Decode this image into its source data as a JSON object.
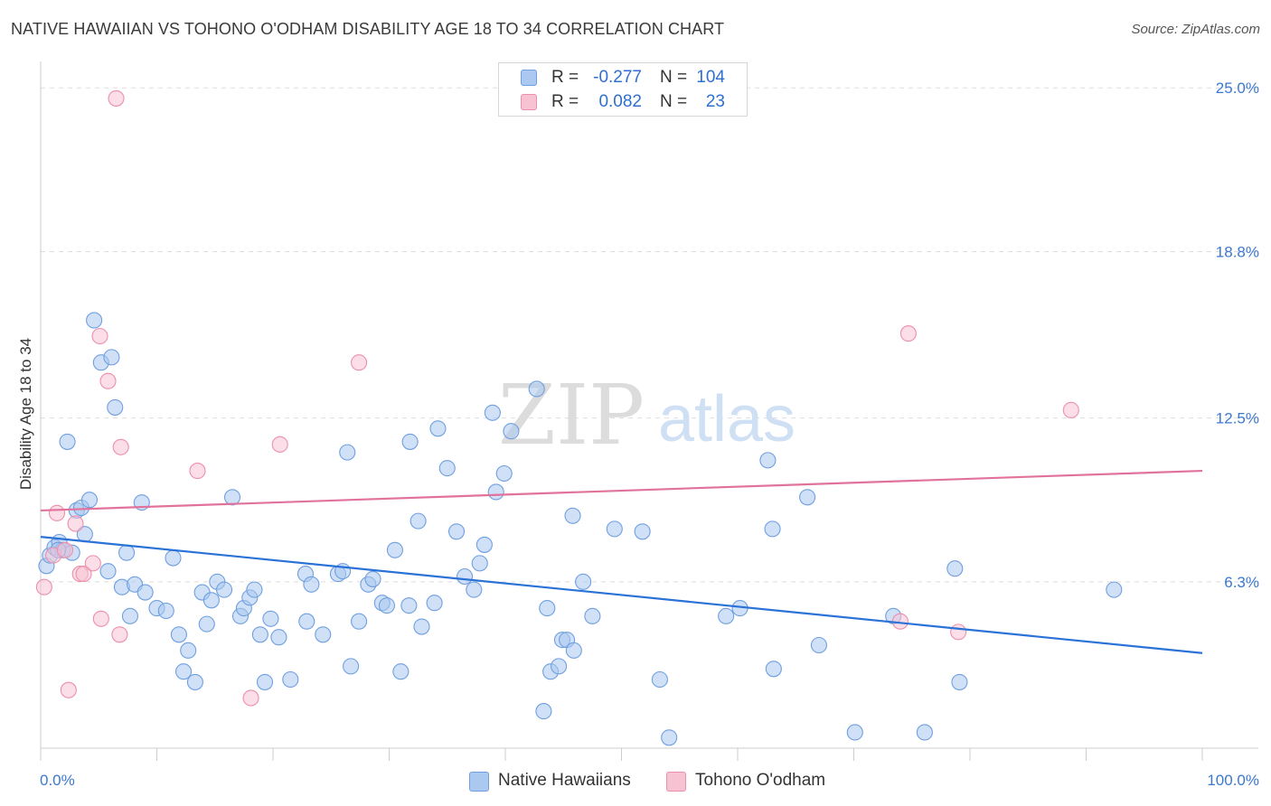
{
  "title": "NATIVE HAWAIIAN VS TOHONO O'ODHAM DISABILITY AGE 18 TO 34 CORRELATION CHART",
  "source": "Source: ZipAtlas.com",
  "watermark": {
    "zip": "ZIP",
    "atlas": "atlas"
  },
  "stats": {
    "rows": [
      {
        "r_label": "R =",
        "r_value": "-0.277",
        "n_label": "N =",
        "n_value": "104"
      },
      {
        "r_label": "R =",
        "r_value": "0.082",
        "n_label": "N =",
        "n_value": "23"
      }
    ]
  },
  "legend": {
    "items": [
      "Native Hawaiians",
      "Tohono O'odham"
    ]
  },
  "colors": {
    "series1_fill": "#aac8f0",
    "series1_stroke": "#6f9fe0",
    "series1_line": "#2a72d8",
    "series2_fill": "#f7c3d3",
    "series2_stroke": "#ec8fab",
    "series2_line": "#e0729b",
    "axis_label": "#3b78d0",
    "grid": "#dddddd"
  },
  "chart_data": {
    "type": "scatter",
    "title": "NATIVE HAWAIIAN VS TOHONO O'ODHAM DISABILITY AGE 18 TO 34 CORRELATION CHART",
    "xlabel": "",
    "ylabel": "Disability Age 18 to 34",
    "xlim": [
      0,
      100
    ],
    "ylim": [
      0,
      26.0
    ],
    "x_tick_labels": [
      "0.0%",
      "100.0%"
    ],
    "y_ticks": [
      6.3,
      12.5,
      18.8,
      25.0
    ],
    "y_tick_labels": [
      "6.3%",
      "12.5%",
      "18.8%",
      "25.0%"
    ],
    "grid": true,
    "legend_position": "bottom-center",
    "series": [
      {
        "name": "Native Hawaiians",
        "r": -0.277,
        "n": 104,
        "trend": {
          "x": [
            0,
            100
          ],
          "y": [
            8.0,
            3.6
          ]
        },
        "points": [
          [
            0.5,
            6.9
          ],
          [
            0.8,
            7.3
          ],
          [
            1.2,
            7.6
          ],
          [
            1.6,
            7.8
          ],
          [
            1.9,
            7.5
          ],
          [
            2.3,
            11.6
          ],
          [
            2.7,
            7.4
          ],
          [
            3.1,
            9.0
          ],
          [
            3.5,
            9.1
          ],
          [
            3.8,
            8.1
          ],
          [
            4.2,
            9.4
          ],
          [
            4.6,
            16.2
          ],
          [
            5.2,
            14.6
          ],
          [
            5.8,
            6.7
          ],
          [
            6.1,
            14.8
          ],
          [
            6.4,
            12.9
          ],
          [
            7.0,
            6.1
          ],
          [
            7.4,
            7.4
          ],
          [
            7.7,
            5.0
          ],
          [
            8.1,
            6.2
          ],
          [
            8.7,
            9.3
          ],
          [
            9.0,
            5.9
          ],
          [
            10.0,
            5.3
          ],
          [
            10.8,
            5.2
          ],
          [
            11.4,
            7.2
          ],
          [
            11.9,
            4.3
          ],
          [
            12.3,
            2.9
          ],
          [
            12.7,
            3.7
          ],
          [
            13.3,
            2.5
          ],
          [
            13.9,
            5.9
          ],
          [
            14.3,
            4.7
          ],
          [
            14.7,
            5.6
          ],
          [
            15.2,
            6.3
          ],
          [
            15.8,
            6.0
          ],
          [
            16.5,
            9.5
          ],
          [
            17.2,
            5.0
          ],
          [
            17.5,
            5.3
          ],
          [
            18.0,
            5.7
          ],
          [
            18.4,
            6.0
          ],
          [
            18.9,
            4.3
          ],
          [
            19.3,
            2.5
          ],
          [
            19.8,
            4.9
          ],
          [
            20.5,
            4.2
          ],
          [
            21.5,
            2.6
          ],
          [
            22.8,
            6.6
          ],
          [
            22.9,
            4.8
          ],
          [
            23.3,
            6.2
          ],
          [
            24.3,
            4.3
          ],
          [
            25.6,
            6.6
          ],
          [
            26.0,
            6.7
          ],
          [
            26.4,
            11.2
          ],
          [
            26.7,
            3.1
          ],
          [
            27.4,
            4.8
          ],
          [
            28.2,
            6.2
          ],
          [
            28.6,
            6.4
          ],
          [
            29.4,
            5.5
          ],
          [
            29.8,
            5.4
          ],
          [
            30.5,
            7.5
          ],
          [
            31.0,
            2.9
          ],
          [
            31.7,
            5.4
          ],
          [
            31.8,
            11.6
          ],
          [
            32.5,
            8.6
          ],
          [
            32.8,
            4.6
          ],
          [
            33.9,
            5.5
          ],
          [
            34.2,
            12.1
          ],
          [
            35.0,
            10.6
          ],
          [
            35.8,
            8.2
          ],
          [
            36.5,
            6.5
          ],
          [
            37.3,
            6.0
          ],
          [
            37.8,
            7.0
          ],
          [
            38.2,
            7.7
          ],
          [
            38.9,
            12.7
          ],
          [
            39.2,
            9.7
          ],
          [
            39.9,
            10.4
          ],
          [
            40.5,
            12.0
          ],
          [
            42.7,
            13.6
          ],
          [
            43.3,
            1.4
          ],
          [
            43.6,
            5.3
          ],
          [
            43.9,
            2.9
          ],
          [
            44.6,
            3.1
          ],
          [
            44.9,
            4.1
          ],
          [
            45.3,
            4.1
          ],
          [
            45.8,
            8.8
          ],
          [
            45.9,
            3.7
          ],
          [
            46.7,
            6.3
          ],
          [
            47.5,
            5.0
          ],
          [
            49.4,
            8.3
          ],
          [
            51.8,
            8.2
          ],
          [
            53.3,
            2.6
          ],
          [
            54.1,
            0.4
          ],
          [
            59.0,
            5.0
          ],
          [
            60.2,
            5.3
          ],
          [
            62.6,
            10.9
          ],
          [
            63.0,
            8.3
          ],
          [
            63.1,
            3.0
          ],
          [
            66.0,
            9.5
          ],
          [
            67.0,
            3.9
          ],
          [
            70.1,
            0.6
          ],
          [
            73.4,
            5.0
          ],
          [
            76.1,
            0.6
          ],
          [
            78.7,
            6.8
          ],
          [
            79.1,
            2.5
          ],
          [
            92.4,
            6.0
          ],
          [
            1.5,
            7.5
          ]
        ]
      },
      {
        "name": "Tohono O'odham",
        "r": 0.082,
        "n": 23,
        "trend": {
          "x": [
            0,
            100
          ],
          "y": [
            9.0,
            10.5
          ]
        },
        "points": [
          [
            0.3,
            6.1
          ],
          [
            1.1,
            7.3
          ],
          [
            1.4,
            8.9
          ],
          [
            2.1,
            7.5
          ],
          [
            2.4,
            2.2
          ],
          [
            3.0,
            8.5
          ],
          [
            3.4,
            6.6
          ],
          [
            3.7,
            6.6
          ],
          [
            4.5,
            7.0
          ],
          [
            5.2,
            4.9
          ],
          [
            5.1,
            15.6
          ],
          [
            5.8,
            13.9
          ],
          [
            6.5,
            24.6
          ],
          [
            6.8,
            4.3
          ],
          [
            6.9,
            11.4
          ],
          [
            13.5,
            10.5
          ],
          [
            18.1,
            1.9
          ],
          [
            20.6,
            11.5
          ],
          [
            27.4,
            14.6
          ],
          [
            74.0,
            4.8
          ],
          [
            74.7,
            15.7
          ],
          [
            79.0,
            4.4
          ],
          [
            88.7,
            12.8
          ]
        ]
      }
    ]
  }
}
